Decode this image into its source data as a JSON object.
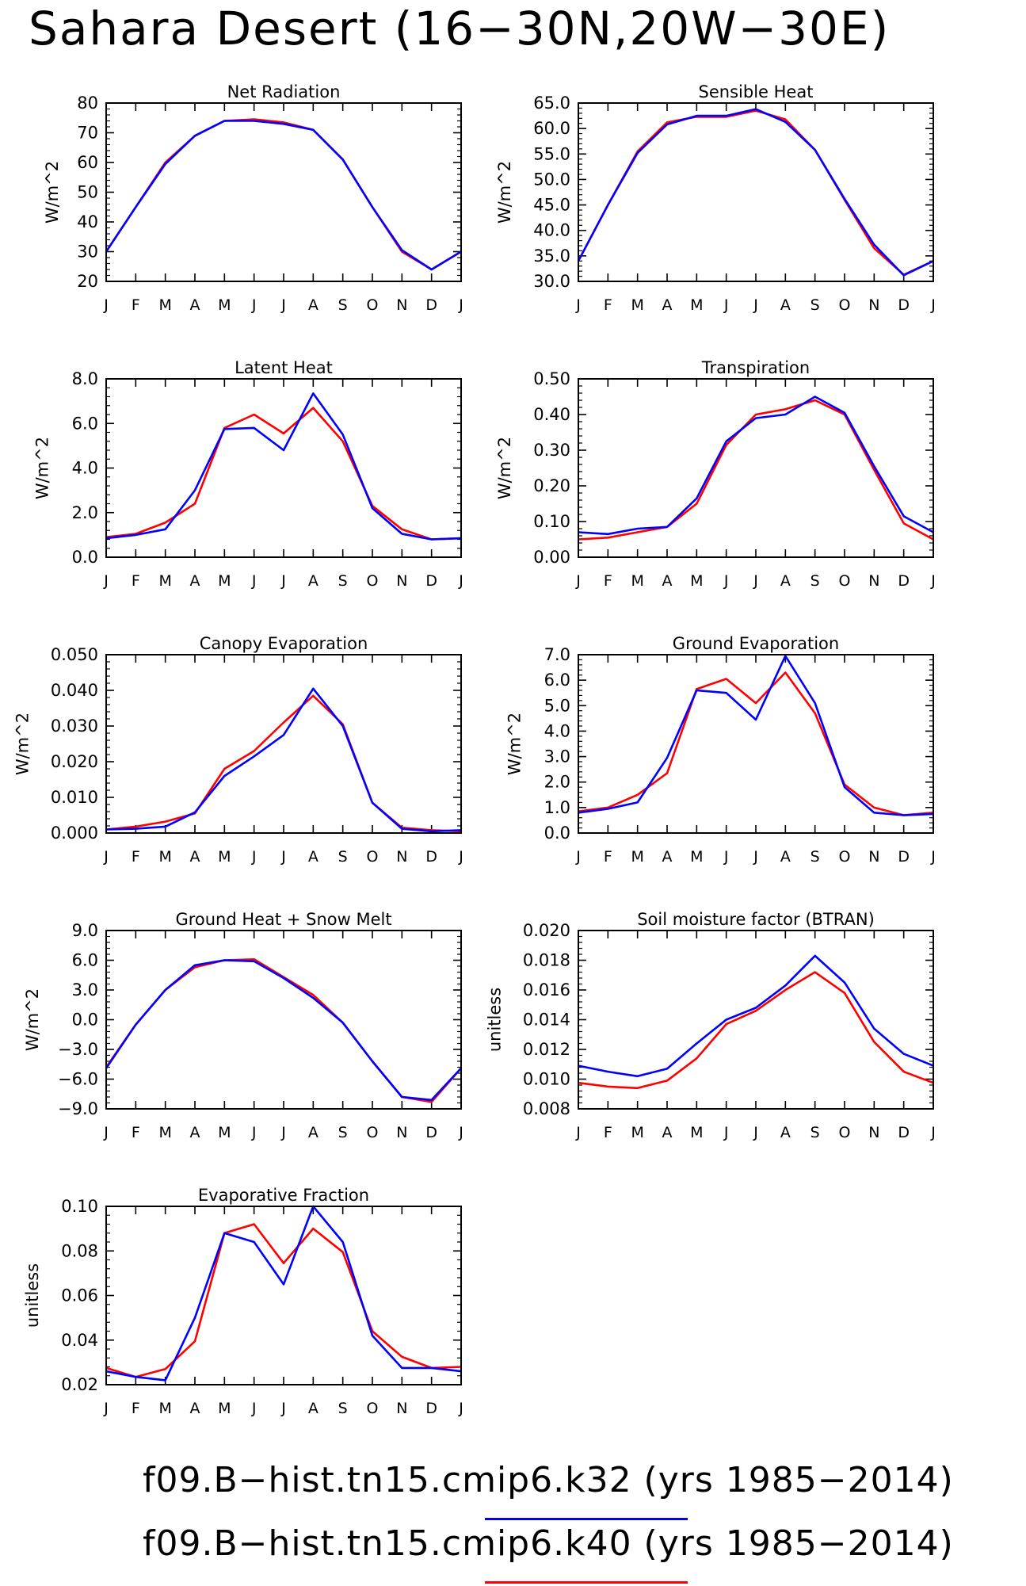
{
  "page": {
    "title": "Sahara Desert (16−30N,20W−30E)"
  },
  "legend": [
    {
      "label": "f09.B−hist.tn15.cmip6.k32 (yrs 1985−2014)",
      "color": "#0000ff"
    },
    {
      "label": "f09.B−hist.tn15.cmip6.k40 (yrs 1985−2014)",
      "color": "#ff0000"
    }
  ],
  "chart_data": [
    {
      "type": "line",
      "title": "Net Radiation",
      "ylabel": "W/m^2",
      "xlabel": "",
      "categories": [
        "J",
        "F",
        "M",
        "A",
        "M",
        "J",
        "J",
        "A",
        "S",
        "O",
        "N",
        "D",
        "J"
      ],
      "ylim": [
        20,
        80
      ],
      "yticks": [
        20,
        30,
        40,
        50,
        60,
        70,
        80
      ],
      "ytick_labels": [
        "20",
        "30",
        "40",
        "50",
        "60",
        "70",
        "80"
      ],
      "series": [
        {
          "color": "#ff0000",
          "values": [
            30,
            45,
            60,
            69,
            74,
            74.5,
            73.5,
            71,
            61,
            45,
            30,
            24,
            30
          ]
        },
        {
          "color": "#0000ff",
          "values": [
            30,
            45,
            59.5,
            69,
            74,
            74,
            73,
            71,
            61,
            45,
            30.5,
            24,
            30
          ]
        }
      ]
    },
    {
      "type": "line",
      "title": "Sensible Heat",
      "ylabel": "W/m^2",
      "xlabel": "",
      "categories": [
        "J",
        "F",
        "M",
        "A",
        "M",
        "J",
        "J",
        "A",
        "S",
        "O",
        "N",
        "D",
        "J"
      ],
      "ylim": [
        30,
        65
      ],
      "yticks": [
        30,
        35,
        40,
        45,
        50,
        55,
        60,
        65
      ],
      "ytick_labels": [
        "30.0",
        "35.0",
        "40.0",
        "45.0",
        "50.0",
        "55.0",
        "60.0",
        "65.0"
      ],
      "series": [
        {
          "color": "#ff0000",
          "values": [
            34,
            45,
            55.5,
            61.2,
            62.3,
            62.3,
            63.5,
            61.8,
            55.8,
            46,
            36.5,
            31.3,
            34
          ]
        },
        {
          "color": "#0000ff",
          "values": [
            34,
            45,
            55.2,
            60.8,
            62.5,
            62.5,
            63.8,
            61.3,
            55.8,
            46.2,
            37.2,
            31.2,
            34
          ]
        }
      ]
    },
    {
      "type": "line",
      "title": "Latent Heat",
      "ylabel": "W/m^2",
      "xlabel": "",
      "categories": [
        "J",
        "F",
        "M",
        "A",
        "M",
        "J",
        "J",
        "A",
        "S",
        "O",
        "N",
        "D",
        "J"
      ],
      "ylim": [
        0,
        8
      ],
      "yticks": [
        0,
        2,
        4,
        6,
        8
      ],
      "ytick_labels": [
        "0.0",
        "2.0",
        "4.0",
        "6.0",
        "8.0"
      ],
      "series": [
        {
          "color": "#ff0000",
          "values": [
            0.9,
            1.05,
            1.55,
            2.4,
            5.8,
            6.4,
            5.55,
            6.7,
            5.2,
            2.3,
            1.25,
            0.8,
            0.85
          ]
        },
        {
          "color": "#0000ff",
          "values": [
            0.85,
            1.0,
            1.25,
            3.0,
            5.75,
            5.8,
            4.8,
            7.35,
            5.5,
            2.2,
            1.05,
            0.8,
            0.85
          ]
        }
      ]
    },
    {
      "type": "line",
      "title": "Transpiration",
      "ylabel": "W/m^2",
      "xlabel": "",
      "categories": [
        "J",
        "F",
        "M",
        "A",
        "M",
        "J",
        "J",
        "A",
        "S",
        "O",
        "N",
        "D",
        "J"
      ],
      "ylim": [
        0,
        0.5
      ],
      "yticks": [
        0,
        0.1,
        0.2,
        0.3,
        0.4,
        0.5
      ],
      "ytick_labels": [
        "0.00",
        "0.10",
        "0.20",
        "0.30",
        "0.40",
        "0.50"
      ],
      "series": [
        {
          "color": "#ff0000",
          "values": [
            0.05,
            0.055,
            0.07,
            0.085,
            0.15,
            0.315,
            0.4,
            0.415,
            0.44,
            0.4,
            0.245,
            0.095,
            0.05
          ]
        },
        {
          "color": "#0000ff",
          "values": [
            0.07,
            0.065,
            0.08,
            0.085,
            0.165,
            0.325,
            0.39,
            0.4,
            0.45,
            0.405,
            0.255,
            0.115,
            0.07
          ]
        }
      ]
    },
    {
      "type": "line",
      "title": "Canopy Evaporation",
      "ylabel": "W/m^2",
      "xlabel": "",
      "categories": [
        "J",
        "F",
        "M",
        "A",
        "M",
        "J",
        "J",
        "A",
        "S",
        "O",
        "N",
        "D",
        "J"
      ],
      "ylim": [
        0,
        0.05
      ],
      "yticks": [
        0,
        0.01,
        0.02,
        0.03,
        0.04,
        0.05
      ],
      "ytick_labels": [
        "0.000",
        "0.010",
        "0.020",
        "0.030",
        "0.040",
        "0.050"
      ],
      "series": [
        {
          "color": "#ff0000",
          "values": [
            0.001,
            0.0018,
            0.0032,
            0.0055,
            0.018,
            0.023,
            0.031,
            0.0385,
            0.0305,
            0.0085,
            0.0015,
            0.0008,
            0.0005
          ]
        },
        {
          "color": "#0000ff",
          "values": [
            0.001,
            0.0012,
            0.0018,
            0.0058,
            0.016,
            0.0215,
            0.0275,
            0.0405,
            0.03,
            0.0085,
            0.0012,
            0.0005,
            0.0008
          ]
        }
      ]
    },
    {
      "type": "line",
      "title": "Ground Evaporation",
      "ylabel": "W/m^2",
      "xlabel": "",
      "categories": [
        "J",
        "F",
        "M",
        "A",
        "M",
        "J",
        "J",
        "A",
        "S",
        "O",
        "N",
        "D",
        "J"
      ],
      "ylim": [
        0,
        7
      ],
      "yticks": [
        0,
        1,
        2,
        3,
        4,
        5,
        6,
        7
      ],
      "ytick_labels": [
        "0.0",
        "1.0",
        "2.0",
        "3.0",
        "4.0",
        "5.0",
        "6.0",
        "7.0"
      ],
      "series": [
        {
          "color": "#ff0000",
          "values": [
            0.85,
            1.0,
            1.5,
            2.35,
            5.65,
            6.05,
            5.1,
            6.3,
            4.7,
            1.9,
            1.0,
            0.7,
            0.8
          ]
        },
        {
          "color": "#0000ff",
          "values": [
            0.8,
            0.95,
            1.2,
            2.95,
            5.6,
            5.5,
            4.45,
            6.95,
            5.1,
            1.8,
            0.8,
            0.7,
            0.75
          ]
        }
      ]
    },
    {
      "type": "line",
      "title": "Ground Heat + Snow Melt",
      "ylabel": "W/m^2",
      "xlabel": "",
      "categories": [
        "J",
        "F",
        "M",
        "A",
        "M",
        "J",
        "J",
        "A",
        "S",
        "O",
        "N",
        "D",
        "J"
      ],
      "ylim": [
        -9,
        9
      ],
      "yticks": [
        -9,
        -6,
        -3,
        0,
        3,
        6,
        9
      ],
      "ytick_labels": [
        "−9.0",
        "−6.0",
        "−3.0",
        "0.0",
        "3.0",
        "6.0",
        "9.0"
      ],
      "series": [
        {
          "color": "#ff0000",
          "values": [
            -4.8,
            -0.5,
            3.0,
            5.3,
            6.0,
            6.1,
            4.3,
            2.5,
            -0.3,
            -4.2,
            -7.8,
            -8.3,
            -4.9
          ]
        },
        {
          "color": "#0000ff",
          "values": [
            -4.9,
            -0.5,
            3.0,
            5.5,
            6.0,
            5.9,
            4.2,
            2.2,
            -0.3,
            -4.2,
            -7.8,
            -8.1,
            -4.9
          ]
        }
      ]
    },
    {
      "type": "line",
      "title": "Soil moisture factor (BTRAN)",
      "ylabel": "unitless",
      "xlabel": "",
      "categories": [
        "J",
        "F",
        "M",
        "A",
        "M",
        "J",
        "J",
        "A",
        "S",
        "O",
        "N",
        "D",
        "J"
      ],
      "ylim": [
        0.008,
        0.02
      ],
      "yticks": [
        0.008,
        0.01,
        0.012,
        0.014,
        0.016,
        0.018,
        0.02
      ],
      "ytick_labels": [
        "0.008",
        "0.010",
        "0.012",
        "0.014",
        "0.016",
        "0.018",
        "0.020"
      ],
      "series": [
        {
          "color": "#ff0000",
          "values": [
            0.00975,
            0.0095,
            0.0094,
            0.0099,
            0.0114,
            0.0137,
            0.0146,
            0.016,
            0.0172,
            0.0158,
            0.0125,
            0.0105,
            0.00975
          ]
        },
        {
          "color": "#0000ff",
          "values": [
            0.0109,
            0.0105,
            0.0102,
            0.0107,
            0.0124,
            0.014,
            0.0148,
            0.0163,
            0.0183,
            0.0165,
            0.0134,
            0.0117,
            0.0109
          ]
        }
      ]
    },
    {
      "type": "line",
      "title": "Evaporative Fraction",
      "ylabel": "unitless",
      "xlabel": "",
      "categories": [
        "J",
        "F",
        "M",
        "A",
        "M",
        "J",
        "J",
        "A",
        "S",
        "O",
        "N",
        "D",
        "J"
      ],
      "ylim": [
        0.02,
        0.1
      ],
      "yticks": [
        0.02,
        0.04,
        0.06,
        0.08,
        0.1
      ],
      "ytick_labels": [
        "0.02",
        "0.04",
        "0.06",
        "0.08",
        "0.10"
      ],
      "series": [
        {
          "color": "#ff0000",
          "values": [
            0.0275,
            0.0235,
            0.027,
            0.0395,
            0.088,
            0.092,
            0.0745,
            0.09,
            0.0795,
            0.044,
            0.0325,
            0.0275,
            0.028
          ]
        },
        {
          "color": "#0000ff",
          "values": [
            0.026,
            0.0235,
            0.022,
            0.05,
            0.088,
            0.084,
            0.065,
            0.1,
            0.084,
            0.042,
            0.0275,
            0.0275,
            0.026
          ]
        }
      ]
    }
  ]
}
